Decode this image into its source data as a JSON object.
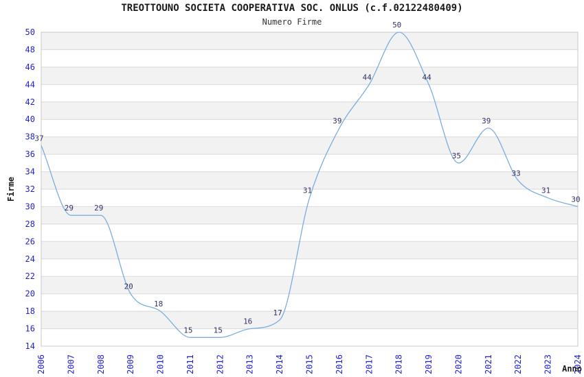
{
  "chart_data": {
    "type": "line",
    "title": "TREOTTOUNO SOCIETA COOPERATIVA SOC. ONLUS (c.f.02122480409)",
    "subtitle": "Numero Firme",
    "xlabel": "Anno",
    "ylabel": "Firme",
    "x": [
      2006,
      2007,
      2008,
      2009,
      2010,
      2011,
      2012,
      2013,
      2014,
      2015,
      2016,
      2017,
      2018,
      2019,
      2020,
      2021,
      2022,
      2023,
      2024
    ],
    "series": [
      {
        "name": "Numero Firme",
        "values": [
          37,
          29,
          29,
          20,
          18,
          15,
          15,
          16,
          17,
          31,
          39,
          44,
          50,
          44,
          35,
          39,
          33,
          31,
          30
        ]
      }
    ],
    "ylim": [
      14,
      50
    ],
    "ytick_step": 2,
    "grid": true,
    "legend": false,
    "point_labels": true,
    "colors": {
      "line": "#79ade0",
      "tick_label": "#2222cc",
      "point_label": "#333366",
      "band_fill": "#f2f2f2",
      "band_alt_fill": "#ffffff",
      "grid_line": "#d9d9d9",
      "plot_border": "#c8c8c8",
      "text": "#1a1a1a",
      "background": "#ffffff"
    }
  }
}
